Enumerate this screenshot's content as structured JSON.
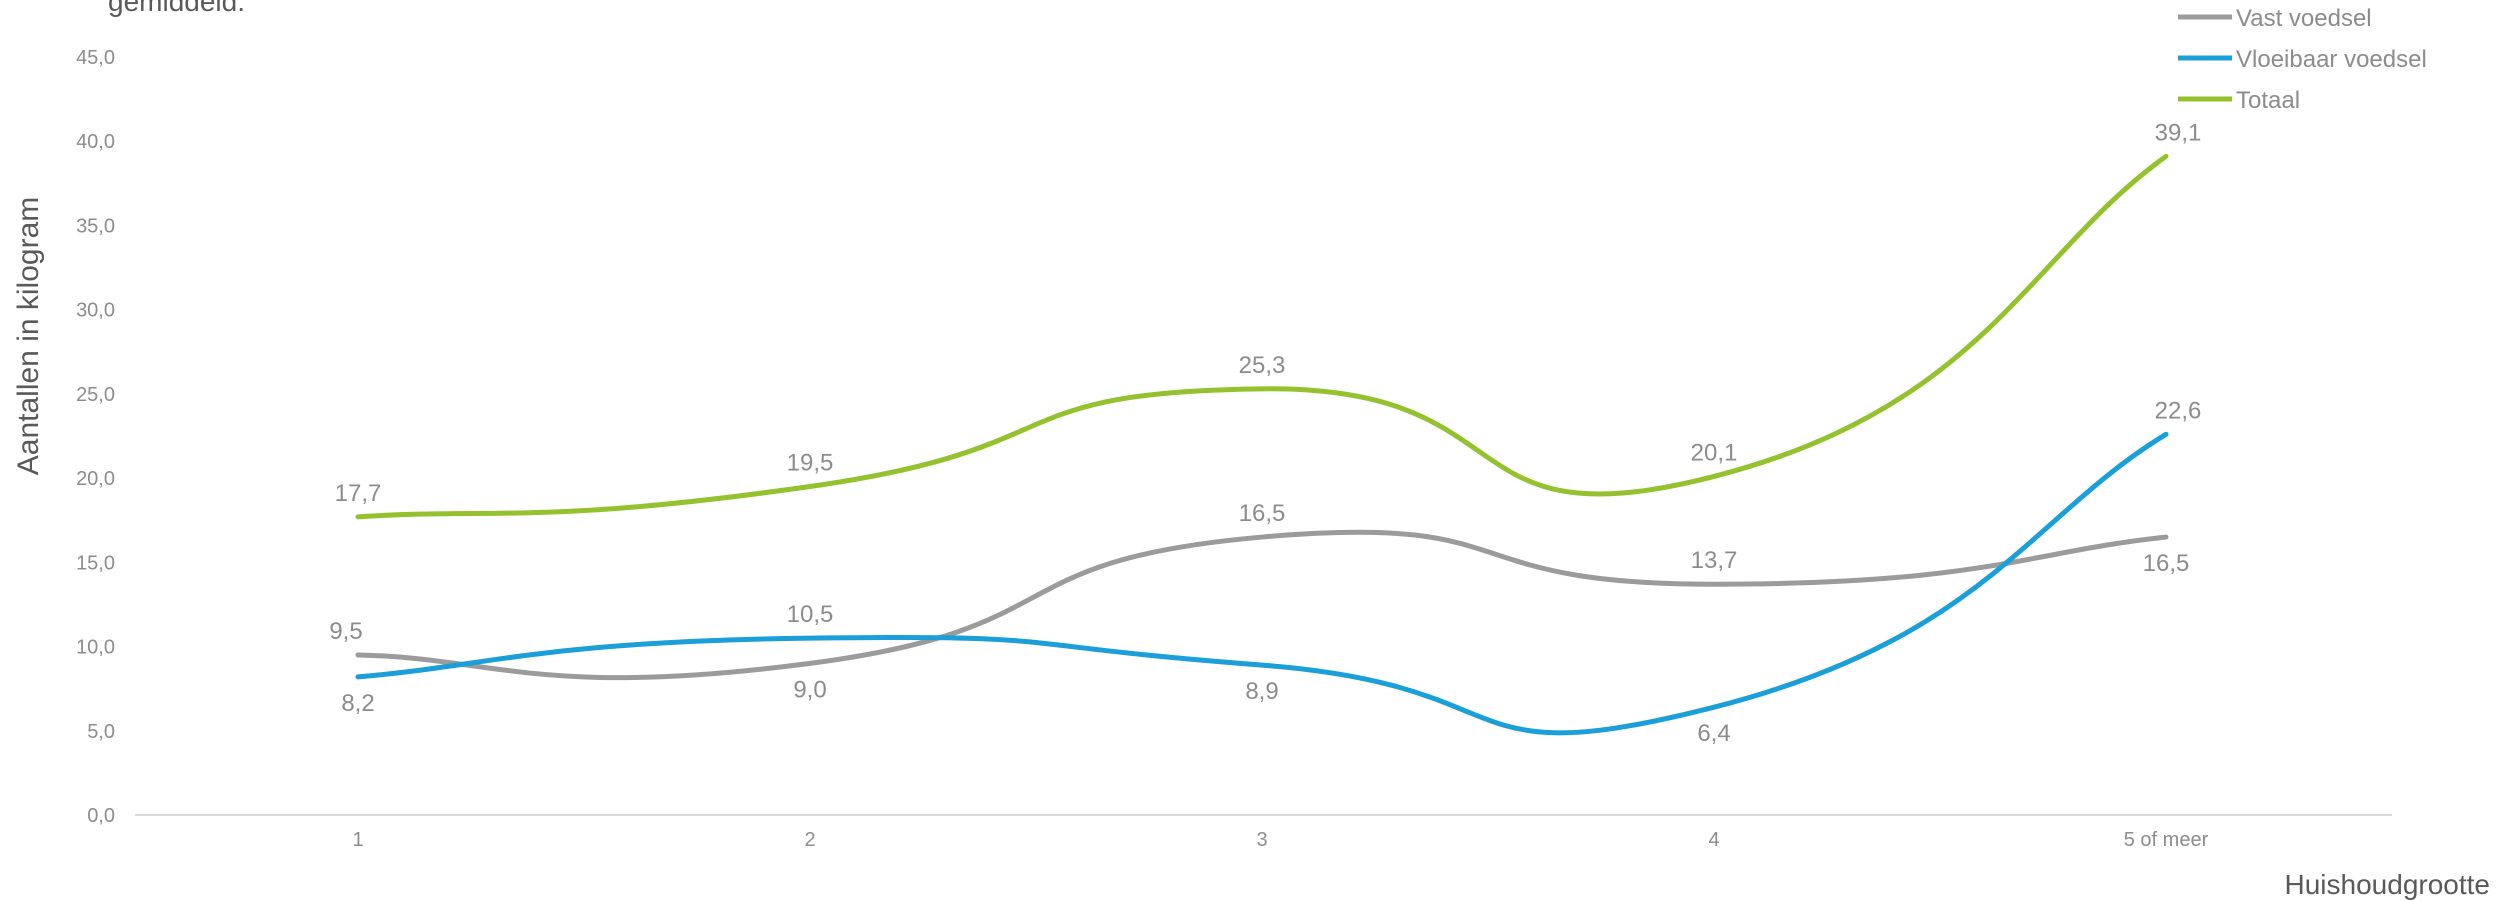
{
  "page": {
    "subtitle": "gemiddeld."
  },
  "colors": {
    "axis_text": "#8c8c8c",
    "label_text": "#8c8c8c",
    "axis_title": "#595959",
    "axis_line": "#d9d9d9"
  },
  "chart_data": {
    "type": "line",
    "smooth": true,
    "title": "",
    "subtitle": "gemiddeld.",
    "xlabel": "Huishoudgrootte",
    "ylabel": "Aantallen in kilogram",
    "categories": [
      "1",
      "2",
      "3",
      "4",
      "5 of meer"
    ],
    "ylim": [
      0,
      45
    ],
    "ytick_step": 5,
    "ytick_labels": [
      "0,0",
      "5,0",
      "10,0",
      "15,0",
      "20,0",
      "25,0",
      "30,0",
      "35,0",
      "40,0",
      "45,0"
    ],
    "grid": false,
    "legend_position": "top-right",
    "series": [
      {
        "name": "Vast voedsel",
        "color": "#9b9b9b",
        "values": [
          9.5,
          9.0,
          16.5,
          13.7,
          16.5
        ],
        "labels": [
          "9,5",
          "9,0",
          "16,5",
          "13,7",
          "16,5"
        ],
        "label_positions": [
          "above-left",
          "below",
          "above",
          "above",
          "below"
        ]
      },
      {
        "name": "Vloeibaar voedsel",
        "color": "#1a9fd9",
        "values": [
          8.2,
          10.5,
          8.9,
          6.4,
          22.6
        ],
        "labels": [
          "8,2",
          "10,5",
          "8,9",
          "6,4",
          "22,6"
        ],
        "label_positions": [
          "below",
          "above",
          "below",
          "below",
          "above"
        ]
      },
      {
        "name": "Totaal",
        "color": "#93c22e",
        "values": [
          17.7,
          19.5,
          25.3,
          20.1,
          39.1
        ],
        "labels": [
          "17,7",
          "19,5",
          "25,3",
          "20,1",
          "39,1"
        ],
        "label_positions": [
          "above",
          "above",
          "above",
          "above",
          "above"
        ]
      }
    ]
  }
}
